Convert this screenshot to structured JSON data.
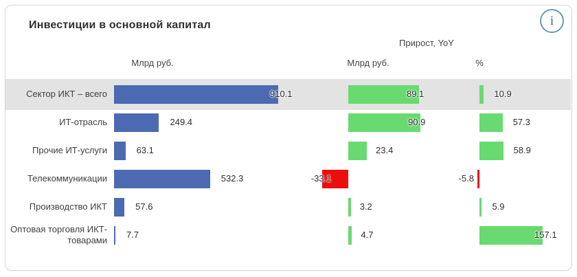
{
  "header": {
    "title": "Инвестиции в основной капитал",
    "info_icon": "i"
  },
  "columns": {
    "group_header": "Прирост, YoY",
    "col1": "Млрд руб.",
    "col2": "Млрд руб.",
    "col3": "%"
  },
  "colors": {
    "bar_blue": "#4b6ab2",
    "bar_green": "#68da70",
    "bar_red": "#ee0d0d",
    "highlight_row": "#e3e3e3",
    "info_accent": "#6b9ab0"
  },
  "chart_data": {
    "type": "bar",
    "orientation": "horizontal",
    "title": "Инвестиции в основной капитал",
    "categories": [
      "Сектор ИКТ – всего",
      "ИТ-отрасль",
      "Прочие ИТ-услуги",
      "Телекоммуникации",
      "Производство ИКТ",
      "Оптовая торговля ИКТ-товарами"
    ],
    "series": [
      {
        "name": "Млрд руб.",
        "values": [
          910.1,
          249.4,
          63.1,
          532.3,
          57.6,
          7.7
        ]
      },
      {
        "name": "Прирост YoY, млрд руб.",
        "values": [
          89.1,
          90.9,
          23.4,
          -33.1,
          3.2,
          4.7
        ]
      },
      {
        "name": "Прирост YoY, %",
        "values": [
          10.9,
          57.3,
          58.9,
          -5.8,
          5.9,
          157.1
        ]
      }
    ],
    "layout": {
      "highlighted_row": 0,
      "grid": false,
      "legend": "none",
      "negative_color": "red",
      "positive_color_col1": "blue",
      "positive_color_yoy": "green",
      "label_modes": [
        [
          "straddle",
          "in",
          "out"
        ],
        [
          "out",
          "in",
          "out"
        ],
        [
          "out",
          "out",
          "out"
        ],
        [
          "out",
          "out-left:14",
          "out-left:-5"
        ],
        [
          "out",
          "out",
          "out"
        ],
        [
          "out",
          "out",
          "straddle"
        ]
      ]
    }
  }
}
